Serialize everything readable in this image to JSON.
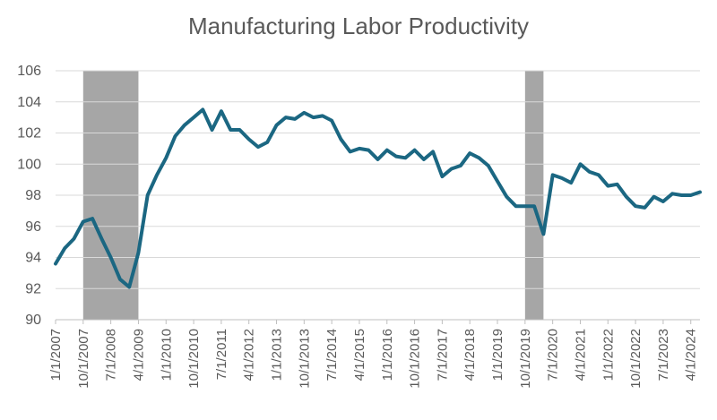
{
  "title": "Manufacturing Labor Productivity",
  "chart_data": {
    "type": "line",
    "title": "Manufacturing Labor Productivity",
    "xlabel": "",
    "ylabel": "",
    "ylim": [
      90,
      106
    ],
    "y_ticks": [
      "90",
      "92",
      "94",
      "96",
      "98",
      "100",
      "102",
      "104",
      "106"
    ],
    "x_tick_labels": [
      "1/1/2007",
      "10/1/2007",
      "7/1/2008",
      "4/1/2009",
      "1/1/2010",
      "10/1/2010",
      "7/1/2011",
      "4/1/2012",
      "1/1/2013",
      "10/1/2013",
      "7/1/2014",
      "4/1/2015",
      "1/1/2016",
      "10/1/2016",
      "7/1/2017",
      "4/1/2018",
      "1/1/2019",
      "10/1/2019",
      "7/1/2020",
      "4/1/2021",
      "1/1/2022",
      "10/1/2022",
      "7/1/2023",
      "4/1/2024"
    ],
    "grid": true,
    "line_color": "#1b6782",
    "shade_color": "#a6a6a6",
    "recession_shading": [
      {
        "start": "10/1/2007",
        "end": "4/1/2009"
      },
      {
        "start": "10/1/2019",
        "end": "4/1/2020"
      }
    ],
    "series": [
      {
        "x": [
          "1/1/2007",
          "4/1/2007",
          "7/1/2007",
          "10/1/2007",
          "1/1/2008",
          "4/1/2008",
          "7/1/2008",
          "10/1/2008",
          "1/1/2009",
          "4/1/2009",
          "7/1/2009",
          "10/1/2009",
          "1/1/2010",
          "4/1/2010",
          "7/1/2010",
          "10/1/2010",
          "1/1/2011",
          "4/1/2011",
          "7/1/2011",
          "10/1/2011",
          "1/1/2012",
          "4/1/2012",
          "7/1/2012",
          "10/1/2012",
          "1/1/2013",
          "4/1/2013",
          "7/1/2013",
          "10/1/2013",
          "1/1/2014",
          "4/1/2014",
          "7/1/2014",
          "10/1/2014",
          "1/1/2015",
          "4/1/2015",
          "7/1/2015",
          "10/1/2015",
          "1/1/2016",
          "4/1/2016",
          "7/1/2016",
          "10/1/2016",
          "1/1/2017",
          "4/1/2017",
          "7/1/2017",
          "10/1/2017",
          "1/1/2018",
          "4/1/2018",
          "7/1/2018",
          "10/1/2018",
          "1/1/2019",
          "4/1/2019",
          "7/1/2019",
          "10/1/2019",
          "1/1/2020",
          "4/1/2020",
          "7/1/2020",
          "10/1/2020",
          "1/1/2021",
          "4/1/2021",
          "7/1/2021",
          "10/1/2021",
          "1/1/2022",
          "4/1/2022",
          "7/1/2022",
          "10/1/2022",
          "1/1/2023",
          "4/1/2023",
          "7/1/2023",
          "10/1/2023",
          "1/1/2024",
          "4/1/2024",
          "7/1/2024"
        ],
        "values": [
          93.6,
          94.6,
          95.2,
          96.3,
          96.5,
          95.2,
          94.0,
          92.6,
          92.1,
          94.3,
          98.0,
          99.3,
          100.4,
          101.8,
          102.5,
          103.0,
          103.5,
          102.2,
          103.4,
          102.2,
          102.2,
          101.6,
          101.1,
          101.4,
          102.5,
          103.0,
          102.9,
          103.3,
          103.0,
          103.1,
          102.8,
          101.6,
          100.8,
          101.0,
          100.9,
          100.3,
          100.9,
          100.5,
          100.4,
          100.9,
          100.3,
          100.8,
          99.2,
          99.7,
          99.9,
          100.7,
          100.4,
          99.9,
          98.9,
          97.9,
          97.3,
          97.3,
          97.3,
          95.5,
          99.3,
          99.1,
          98.8,
          100.0,
          99.5,
          99.3,
          98.6,
          98.7,
          97.9,
          97.3,
          97.2,
          97.9,
          97.6,
          98.1,
          98.0,
          98.0,
          98.2
        ]
      }
    ]
  }
}
